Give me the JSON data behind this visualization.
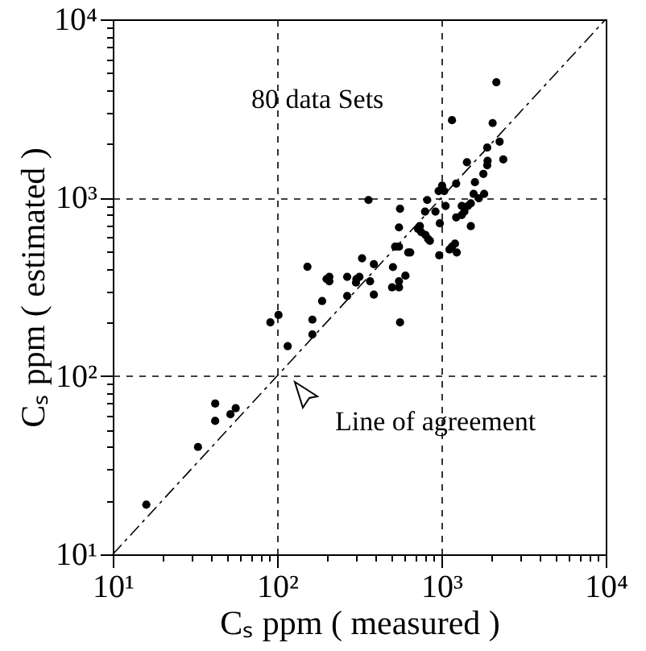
{
  "chart_data": {
    "type": "scatter",
    "xlabel": "Cₛ ppm ( measured )",
    "ylabel": "Cₛ ppm ( estimated )",
    "log": "xy",
    "grid": true,
    "xlim": [
      10,
      10000
    ],
    "ylim": [
      10,
      10000
    ],
    "xticks": [
      {
        "value": 10,
        "label": "10¹"
      },
      {
        "value": 20,
        "label": null
      },
      {
        "value": 30,
        "label": null
      },
      {
        "value": 40,
        "label": null
      },
      {
        "value": 50,
        "label": null
      },
      {
        "value": 60,
        "label": null
      },
      {
        "value": 70,
        "label": null
      },
      {
        "value": 80,
        "label": null
      },
      {
        "value": 90,
        "label": null
      },
      {
        "value": 100,
        "label": "10²"
      },
      {
        "value": 200,
        "label": null
      },
      {
        "value": 300,
        "label": null
      },
      {
        "value": 400,
        "label": null
      },
      {
        "value": 500,
        "label": null
      },
      {
        "value": 600,
        "label": null
      },
      {
        "value": 700,
        "label": null
      },
      {
        "value": 800,
        "label": null
      },
      {
        "value": 900,
        "label": null
      },
      {
        "value": 1000,
        "label": "10³"
      },
      {
        "value": 2000,
        "label": null
      },
      {
        "value": 3000,
        "label": null
      },
      {
        "value": 4000,
        "label": null
      },
      {
        "value": 5000,
        "label": null
      },
      {
        "value": 6000,
        "label": null
      },
      {
        "value": 7000,
        "label": null
      },
      {
        "value": 8000,
        "label": null
      },
      {
        "value": 9000,
        "label": null
      },
      {
        "value": 10000,
        "label": "10⁴"
      }
    ],
    "yticks": [
      {
        "value": 10,
        "label": "10¹"
      },
      {
        "value": 20,
        "label": null
      },
      {
        "value": 30,
        "label": null
      },
      {
        "value": 40,
        "label": null
      },
      {
        "value": 50,
        "label": null
      },
      {
        "value": 60,
        "label": null
      },
      {
        "value": 70,
        "label": null
      },
      {
        "value": 80,
        "label": null
      },
      {
        "value": 90,
        "label": null
      },
      {
        "value": 100,
        "label": "10²"
      },
      {
        "value": 200,
        "label": null
      },
      {
        "value": 300,
        "label": null
      },
      {
        "value": 400,
        "label": null
      },
      {
        "value": 500,
        "label": null
      },
      {
        "value": 600,
        "label": null
      },
      {
        "value": 700,
        "label": null
      },
      {
        "value": 800,
        "label": null
      },
      {
        "value": 900,
        "label": null
      },
      {
        "value": 1000,
        "label": "10³"
      },
      {
        "value": 2000,
        "label": null
      },
      {
        "value": 3000,
        "label": null
      },
      {
        "value": 4000,
        "label": null
      },
      {
        "value": 5000,
        "label": null
      },
      {
        "value": 6000,
        "label": null
      },
      {
        "value": 7000,
        "label": null
      },
      {
        "value": 8000,
        "label": null
      },
      {
        "value": 9000,
        "label": null
      },
      {
        "value": 10000,
        "label": "10⁴"
      }
    ],
    "annotations": [
      "80 data Sets",
      "Line of agreement"
    ],
    "series": [
      {
        "marker": "circle",
        "color": "#000000",
        "x": [
          16,
          33,
          42,
          42,
          52,
          56,
          91,
          102,
          116,
          153,
          164,
          164,
          188,
          208,
          208,
          267,
          267,
          304,
          329,
          317,
          360,
          388,
          388,
          368,
          501,
          507,
          560,
          552,
          552,
          552,
          552,
          560,
          604,
          628,
          646,
          523,
          721,
          755,
          820,
          795,
          800,
          851,
          920,
          978,
          970,
          1010,
          1040,
          1120,
          1160,
          1210,
          1230,
          1230,
          1240,
          1380,
          1430,
          1450,
          1510,
          1510,
          1570,
          1600,
          1690,
          1800,
          1820,
          1910,
          1900,
          2050,
          2160,
          2260,
          2380,
          1330,
          1160,
          830,
          200,
          302,
          962,
          740,
          1060,
          1900,
          1330
        ],
        "values": [
          19,
          40,
          70,
          56,
          61,
          66,
          200,
          220,
          147,
          410,
          207,
          171,
          263,
          360,
          340,
          281,
          360,
          350,
          457,
          360,
          970,
          424,
          286,
          340,
          314,
          408,
          867,
          681,
          531,
          340,
          314,
          200,
          365,
          493,
          493,
          531,
          667,
          640,
          970,
          836,
          618,
          573,
          836,
          718,
          475,
          1170,
          1090,
          512,
          2720,
          552,
          775,
          1200,
          493,
          836,
          1580,
          899,
          929,
          692,
          1050,
          1220,
          992,
          1360,
          1050,
          1610,
          1910,
          2620,
          4440,
          2060,
          1640,
          899,
          531,
          587,
          350,
          334,
          1090,
          692,
          899,
          1520,
          800
        ]
      },
      {
        "type": "line",
        "marker": "none",
        "color": "#000000",
        "line_style": "dashed",
        "x": [
          10,
          10000
        ],
        "values": [
          10,
          10000
        ]
      }
    ]
  }
}
